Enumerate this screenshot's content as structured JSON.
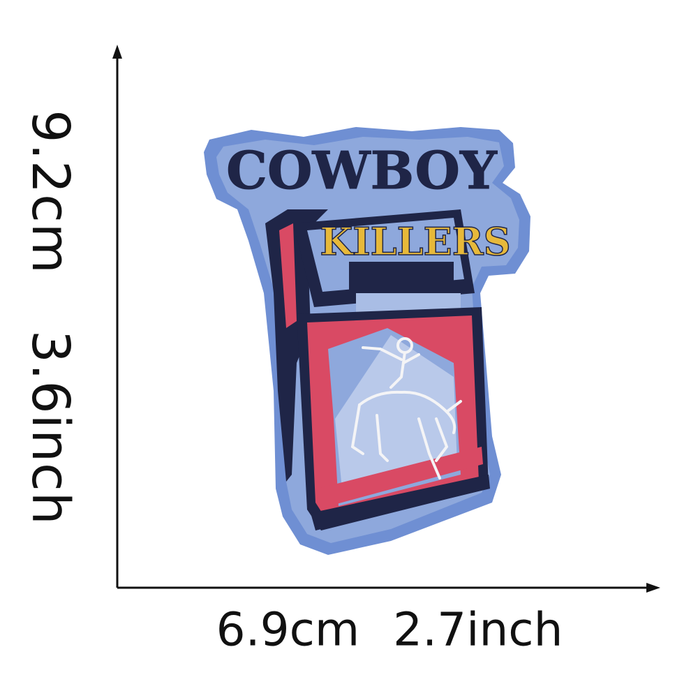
{
  "dimensions": {
    "height_cm": "9.2cm",
    "height_inch": "3.6inch",
    "width_cm": "6.9cm",
    "width_inch": "2.7inch"
  },
  "patch": {
    "line1": "COWBOY",
    "line2": "KILLERS",
    "colors": {
      "border": "#6f8fd3",
      "fabric": "#8ea8dc",
      "navy": "#1f2547",
      "red": "#d94a64",
      "gold": "#e7b93a",
      "white": "#f4f4f6"
    }
  },
  "axes": {
    "color": "#111111"
  }
}
